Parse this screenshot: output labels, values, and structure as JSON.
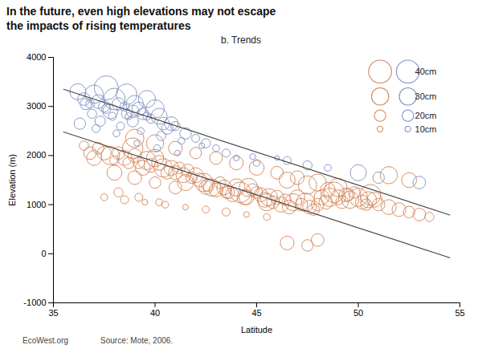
{
  "chart_data": {
    "type": "scatter",
    "title": "In the future, even high elevations may not escape\nthe impacts of rising temperatures",
    "subtitle": "b. Trends",
    "xlabel": "Latitude",
    "ylabel": "Elevation (m)",
    "xlim": [
      35,
      55
    ],
    "ylim": [
      -1000,
      4000
    ],
    "xticks": [
      35,
      40,
      45,
      50,
      55
    ],
    "yticks": [
      -1000,
      0,
      1000,
      2000,
      3000,
      4000
    ],
    "grid": false,
    "legend": "upper right",
    "legend_sizes": [
      40,
      30,
      20,
      10
    ],
    "legend_labels": [
      "40cm",
      "30cm",
      "20cm",
      "10cm"
    ],
    "annotations": [
      "EcoWest.org",
      "Source: Mote, 2006."
    ],
    "series": [
      {
        "type": "scatter",
        "marker": "circle",
        "color": "#D4855A",
        "x": [
          36.5,
          36.8,
          37.0,
          37.2,
          37.5,
          37.8,
          38.0,
          38.2,
          38.5,
          38.7,
          38.9,
          39.0,
          39.2,
          39.4,
          39.6,
          39.8,
          40.0,
          40.2,
          40.4,
          40.6,
          40.8,
          41.0,
          41.2,
          41.4,
          41.6,
          41.8,
          42.0,
          42.2,
          42.4,
          42.6,
          42.8,
          43.0,
          43.2,
          43.4,
          43.6,
          43.8,
          44.0,
          44.2,
          44.4,
          44.6,
          44.8,
          45.0,
          45.2,
          45.4,
          45.6,
          45.8,
          46.0,
          46.2,
          46.4,
          46.6,
          46.8,
          47.0,
          47.2,
          47.4,
          47.6,
          47.8,
          48.0,
          48.2,
          48.4,
          48.6,
          48.8,
          49.0,
          49.2,
          49.4,
          49.6,
          49.8,
          50.0,
          50.2,
          50.4,
          50.6,
          50.8,
          51.0,
          51.5,
          52.0,
          52.5,
          53.0,
          53.5,
          37.5,
          38.5,
          39.5,
          40.5,
          41.5,
          42.5,
          43.5,
          44.5,
          45.5,
          39.0,
          40.0,
          41.0,
          38.0,
          39.0,
          40.0,
          41.0,
          42.0,
          43.0,
          44.0,
          45.0,
          46.0,
          47.0,
          48.0,
          49.0,
          46.5,
          47.5,
          48.0,
          38.2,
          39.2,
          40.2,
          41.5,
          42.5,
          43.5,
          44.5,
          45.5,
          46.5,
          47.5,
          48.5,
          49.5,
          50.5,
          51.5,
          52.5
        ],
        "values": [
          2200,
          2050,
          1950,
          2150,
          2050,
          2000,
          1900,
          2050,
          1950,
          1850,
          2150,
          2000,
          1850,
          1750,
          1900,
          1800,
          1950,
          1850,
          1750,
          1650,
          1750,
          1650,
          1750,
          1600,
          1700,
          1550,
          1600,
          1500,
          1450,
          1400,
          1350,
          1300,
          1450,
          1350,
          1250,
          1200,
          1350,
          1250,
          1150,
          1350,
          1300,
          1250,
          1200,
          1100,
          1150,
          1050,
          1150,
          1000,
          1100,
          950,
          1050,
          1150,
          1000,
          1050,
          950,
          900,
          1000,
          1150,
          1050,
          1150,
          1250,
          1150,
          1050,
          1200,
          1100,
          1250,
          1150,
          1050,
          1000,
          1200,
          1100,
          1000,
          950,
          900,
          850,
          800,
          750,
          1150,
          1100,
          1050,
          1000,
          950,
          900,
          850,
          800,
          750,
          1550,
          1450,
          1350,
          1650,
          2350,
          2250,
          2150,
          2050,
          1950,
          1850,
          1750,
          1650,
          1550,
          1450,
          1350,
          220,
          170,
          280,
          1250,
          1150,
          1050,
          1450,
          1350,
          1250,
          1150,
          1050,
          1500,
          1400,
          1300,
          1200,
          1100,
          1600,
          1500
        ],
        "sizes": [
          16,
          22,
          26,
          20,
          24,
          32,
          16,
          22,
          26,
          20,
          36,
          24,
          20,
          26,
          32,
          24,
          30,
          26,
          32,
          22,
          26,
          24,
          20,
          26,
          22,
          20,
          26,
          24,
          32,
          22,
          30,
          24,
          20,
          26,
          22,
          24,
          30,
          36,
          26,
          32,
          22,
          20,
          24,
          26,
          30,
          22,
          24,
          26,
          20,
          24,
          30,
          26,
          22,
          32,
          24,
          20,
          22,
          26,
          24,
          32,
          36,
          26,
          22,
          24,
          30,
          20,
          32,
          24,
          20,
          36,
          26,
          22,
          26,
          24,
          20,
          22,
          16,
          12,
          14,
          10,
          12,
          10,
          12,
          14,
          10,
          12,
          24,
          20,
          22,
          26,
          32,
          30,
          24,
          20,
          22,
          24,
          26,
          22,
          24,
          30,
          32,
          24,
          20,
          22,
          16,
          14,
          12,
          28,
          24,
          20,
          26,
          30,
          28,
          32,
          26,
          22,
          28,
          30,
          26
        ]
      },
      {
        "type": "scatter",
        "marker": "circle",
        "color": "#8090C0",
        "x": [
          36.2,
          36.5,
          36.8,
          37.0,
          37.2,
          37.5,
          37.8,
          38.0,
          38.2,
          38.5,
          38.7,
          38.9,
          39.0,
          39.2,
          39.4,
          39.6,
          39.8,
          40.0,
          40.2,
          40.4,
          40.6,
          40.8,
          41.0,
          41.5,
          42.0,
          42.5,
          43.0,
          43.5,
          44.0,
          45.0,
          46.5,
          47.5,
          48.5,
          50.0,
          51.0,
          53.0,
          36.3,
          37.1,
          38.1,
          39.1,
          40.1,
          41.1,
          37.6,
          38.6,
          39.6,
          36.9,
          37.9,
          38.9,
          44.8,
          46.0,
          37.3,
          38.3,
          39.3,
          40.3,
          41.3,
          42.3,
          36.6,
          37.6,
          38.6
        ],
        "values": [
          3300,
          3150,
          3050,
          3250,
          3100,
          3000,
          2900,
          3150,
          3050,
          3000,
          2800,
          2900,
          3050,
          2950,
          2850,
          2800,
          2750,
          2950,
          2800,
          2650,
          2550,
          2650,
          2600,
          2450,
          2350,
          2250,
          2150,
          2050,
          1950,
          1850,
          1900,
          1800,
          1750,
          1650,
          1550,
          1450,
          2650,
          2550,
          2450,
          2250,
          2150,
          2050,
          3380,
          3250,
          3150,
          2850,
          2800,
          2700,
          1980,
          1950,
          2700,
          2600,
          2500,
          2400,
          2300,
          2200,
          3050,
          2950,
          2850
        ],
        "sizes": [
          28,
          22,
          15,
          32,
          24,
          20,
          26,
          38,
          22,
          16,
          12,
          22,
          30,
          24,
          20,
          14,
          16,
          32,
          28,
          22,
          20,
          24,
          16,
          20,
          14,
          16,
          12,
          14,
          10,
          12,
          14,
          16,
          12,
          28,
          20,
          22,
          20,
          14,
          12,
          10,
          12,
          10,
          42,
          36,
          30,
          16,
          14,
          20,
          10,
          8,
          18,
          14,
          12,
          16,
          12,
          10,
          20,
          16,
          18
        ]
      },
      {
        "type": "line",
        "line_style": "solid",
        "color": "#444444",
        "x": [
          35.5,
          54.5
        ],
        "values": [
          3350,
          790
        ]
      },
      {
        "type": "line",
        "line_style": "solid",
        "color": "#444444",
        "x": [
          35.5,
          54.5
        ],
        "values": [
          2480,
          -80
        ]
      }
    ]
  }
}
